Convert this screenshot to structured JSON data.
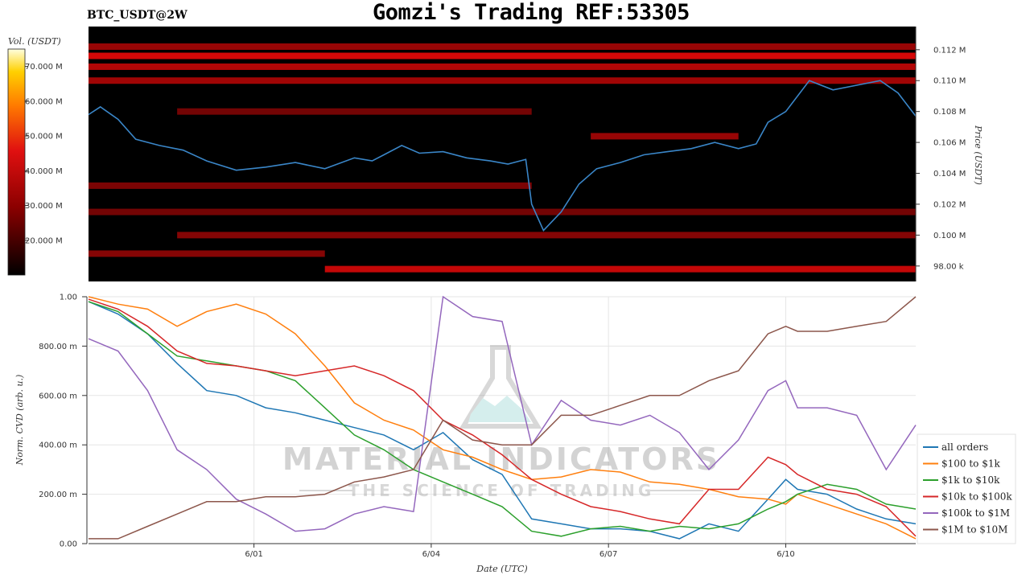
{
  "title": "Gomzi's Trading REF:53305",
  "pair": "BTC_USDT@2W",
  "watermark": {
    "brand": "MATERIAL INDICATORS",
    "tagline": "THE SCIENCE OF TRADING"
  },
  "colors": {
    "price_line": "#3a86c8",
    "heatmap_bg": "#000000",
    "series": [
      "#1f77b4",
      "#ff7f0e",
      "#2ca02c",
      "#d62728",
      "#9467bd",
      "#8c564b"
    ]
  },
  "chart_data": [
    {
      "type": "heatmap",
      "colorbar_label": "Vol. (USDT)",
      "colorbar_ticks": [
        "70.000 M",
        "60.000 M",
        "50.000 M",
        "40.000 M",
        "30.000 M",
        "20.000 M"
      ],
      "colorbar_values": [
        70,
        60,
        50,
        40,
        30,
        20
      ],
      "colorbar_range": [
        10,
        75
      ],
      "ylabel": "Price (USDT)",
      "y_ticks": [
        "0.112 M",
        "0.110 M",
        "0.108 M",
        "0.106 M",
        "0.104 M",
        "0.102 M",
        "0.100 M",
        "98.00 k"
      ],
      "y_values": [
        112000,
        110000,
        108000,
        106000,
        104000,
        102000,
        100000,
        98000
      ],
      "ylim": [
        97000,
        113500
      ],
      "xlim": [
        0,
        14
      ],
      "price_line": {
        "x": [
          0,
          0.2,
          0.5,
          0.8,
          1.2,
          1.6,
          2.0,
          2.5,
          3.0,
          3.5,
          4.0,
          4.5,
          4.8,
          5.0,
          5.3,
          5.6,
          6.0,
          6.4,
          6.8,
          7.1,
          7.4,
          7.5,
          7.7,
          8.0,
          8.3,
          8.6,
          9.0,
          9.4,
          9.8,
          10.2,
          10.6,
          11.0,
          11.3,
          11.5,
          11.8,
          12.2,
          12.6,
          13.0,
          13.4,
          13.7,
          14.0
        ],
        "y": [
          107800,
          108300,
          107500,
          106200,
          105800,
          105500,
          104800,
          104200,
          104400,
          104700,
          104300,
          105000,
          104800,
          105200,
          105800,
          105300,
          105400,
          105000,
          104800,
          104600,
          104900,
          102000,
          100300,
          101500,
          103300,
          104300,
          104700,
          105200,
          105400,
          105600,
          106000,
          105600,
          105900,
          107300,
          108000,
          110000,
          109400,
          109700,
          110000,
          109200,
          107700
        ]
      },
      "bands": [
        {
          "price": 112200,
          "x": [
            0,
            14
          ],
          "intensity": 0.55
        },
        {
          "price": 111600,
          "x": [
            0,
            14
          ],
          "intensity": 0.9
        },
        {
          "price": 110900,
          "x": [
            0,
            14
          ],
          "intensity": 0.7
        },
        {
          "price": 110000,
          "x": [
            0,
            14
          ],
          "intensity": 0.6
        },
        {
          "price": 108000,
          "x": [
            1.5,
            7.5
          ],
          "intensity": 0.35
        },
        {
          "price": 106400,
          "x": [
            8.5,
            11.0
          ],
          "intensity": 0.55
        },
        {
          "price": 103200,
          "x": [
            0,
            7.5
          ],
          "intensity": 0.4
        },
        {
          "price": 101500,
          "x": [
            0,
            14
          ],
          "intensity": 0.35
        },
        {
          "price": 100000,
          "x": [
            1.5,
            14
          ],
          "intensity": 0.45
        },
        {
          "price": 98800,
          "x": [
            0,
            4.0
          ],
          "intensity": 0.45
        },
        {
          "price": 97800,
          "x": [
            4.0,
            14
          ],
          "intensity": 0.8
        }
      ]
    },
    {
      "type": "line",
      "xlabel": "Date (UTC)",
      "ylabel": "Norm. CVD (arb. u.)",
      "x_ticks": [
        "6/01",
        "6/04",
        "6/07",
        "6/10"
      ],
      "x_tick_values": [
        2.8,
        5.8,
        8.8,
        11.8
      ],
      "y_ticks": [
        "1.00",
        "800.00 m",
        "600.00 m",
        "400.00 m",
        "200.00 m",
        "0.00"
      ],
      "y_tick_values": [
        1.0,
        0.8,
        0.6,
        0.4,
        0.2,
        0.0
      ],
      "xlim": [
        0,
        14
      ],
      "ylim": [
        0,
        1
      ],
      "grid": true,
      "legend_position": "bottom-right",
      "x": [
        0,
        0.5,
        1.0,
        1.5,
        2.0,
        2.5,
        3.0,
        3.5,
        4.0,
        4.5,
        5.0,
        5.5,
        6.0,
        6.5,
        7.0,
        7.5,
        8.0,
        8.5,
        9.0,
        9.5,
        10.0,
        10.5,
        11.0,
        11.5,
        11.8,
        12.0,
        12.5,
        13.0,
        13.5,
        14.0
      ],
      "series": [
        {
          "name": "all orders",
          "values": [
            0.98,
            0.93,
            0.85,
            0.73,
            0.62,
            0.6,
            0.55,
            0.53,
            0.5,
            0.47,
            0.44,
            0.38,
            0.45,
            0.34,
            0.28,
            0.1,
            0.08,
            0.06,
            0.06,
            0.05,
            0.02,
            0.08,
            0.05,
            0.18,
            0.26,
            0.22,
            0.2,
            0.14,
            0.1,
            0.08
          ]
        },
        {
          "name": "$100 to $1k",
          "values": [
            1.0,
            0.97,
            0.95,
            0.88,
            0.94,
            0.97,
            0.93,
            0.85,
            0.72,
            0.57,
            0.5,
            0.46,
            0.38,
            0.35,
            0.3,
            0.26,
            0.27,
            0.3,
            0.29,
            0.25,
            0.24,
            0.22,
            0.19,
            0.18,
            0.16,
            0.2,
            0.16,
            0.12,
            0.08,
            0.02
          ]
        },
        {
          "name": "$1k to $10k",
          "values": [
            0.98,
            0.94,
            0.85,
            0.76,
            0.74,
            0.72,
            0.7,
            0.66,
            0.55,
            0.44,
            0.38,
            0.3,
            0.25,
            0.2,
            0.15,
            0.05,
            0.03,
            0.06,
            0.07,
            0.05,
            0.07,
            0.06,
            0.08,
            0.14,
            0.17,
            0.2,
            0.24,
            0.22,
            0.16,
            0.14
          ]
        },
        {
          "name": "$10k to $100k",
          "values": [
            0.99,
            0.95,
            0.88,
            0.78,
            0.73,
            0.72,
            0.7,
            0.68,
            0.7,
            0.72,
            0.68,
            0.62,
            0.5,
            0.44,
            0.36,
            0.26,
            0.2,
            0.15,
            0.13,
            0.1,
            0.08,
            0.22,
            0.22,
            0.35,
            0.32,
            0.28,
            0.22,
            0.2,
            0.15,
            0.03
          ]
        },
        {
          "name": "$100k to $1M",
          "values": [
            0.83,
            0.78,
            0.62,
            0.38,
            0.3,
            0.18,
            0.12,
            0.05,
            0.06,
            0.12,
            0.15,
            0.13,
            1.0,
            0.92,
            0.9,
            0.4,
            0.58,
            0.5,
            0.48,
            0.52,
            0.45,
            0.3,
            0.42,
            0.62,
            0.66,
            0.55,
            0.55,
            0.52,
            0.3,
            0.48
          ]
        },
        {
          "name": "$1M to $10M",
          "values": [
            0.02,
            0.02,
            0.07,
            0.12,
            0.17,
            0.17,
            0.19,
            0.19,
            0.2,
            0.25,
            0.27,
            0.3,
            0.5,
            0.42,
            0.4,
            0.4,
            0.52,
            0.52,
            0.56,
            0.6,
            0.6,
            0.66,
            0.7,
            0.85,
            0.88,
            0.86,
            0.86,
            0.88,
            0.9,
            1.0
          ]
        }
      ]
    }
  ]
}
